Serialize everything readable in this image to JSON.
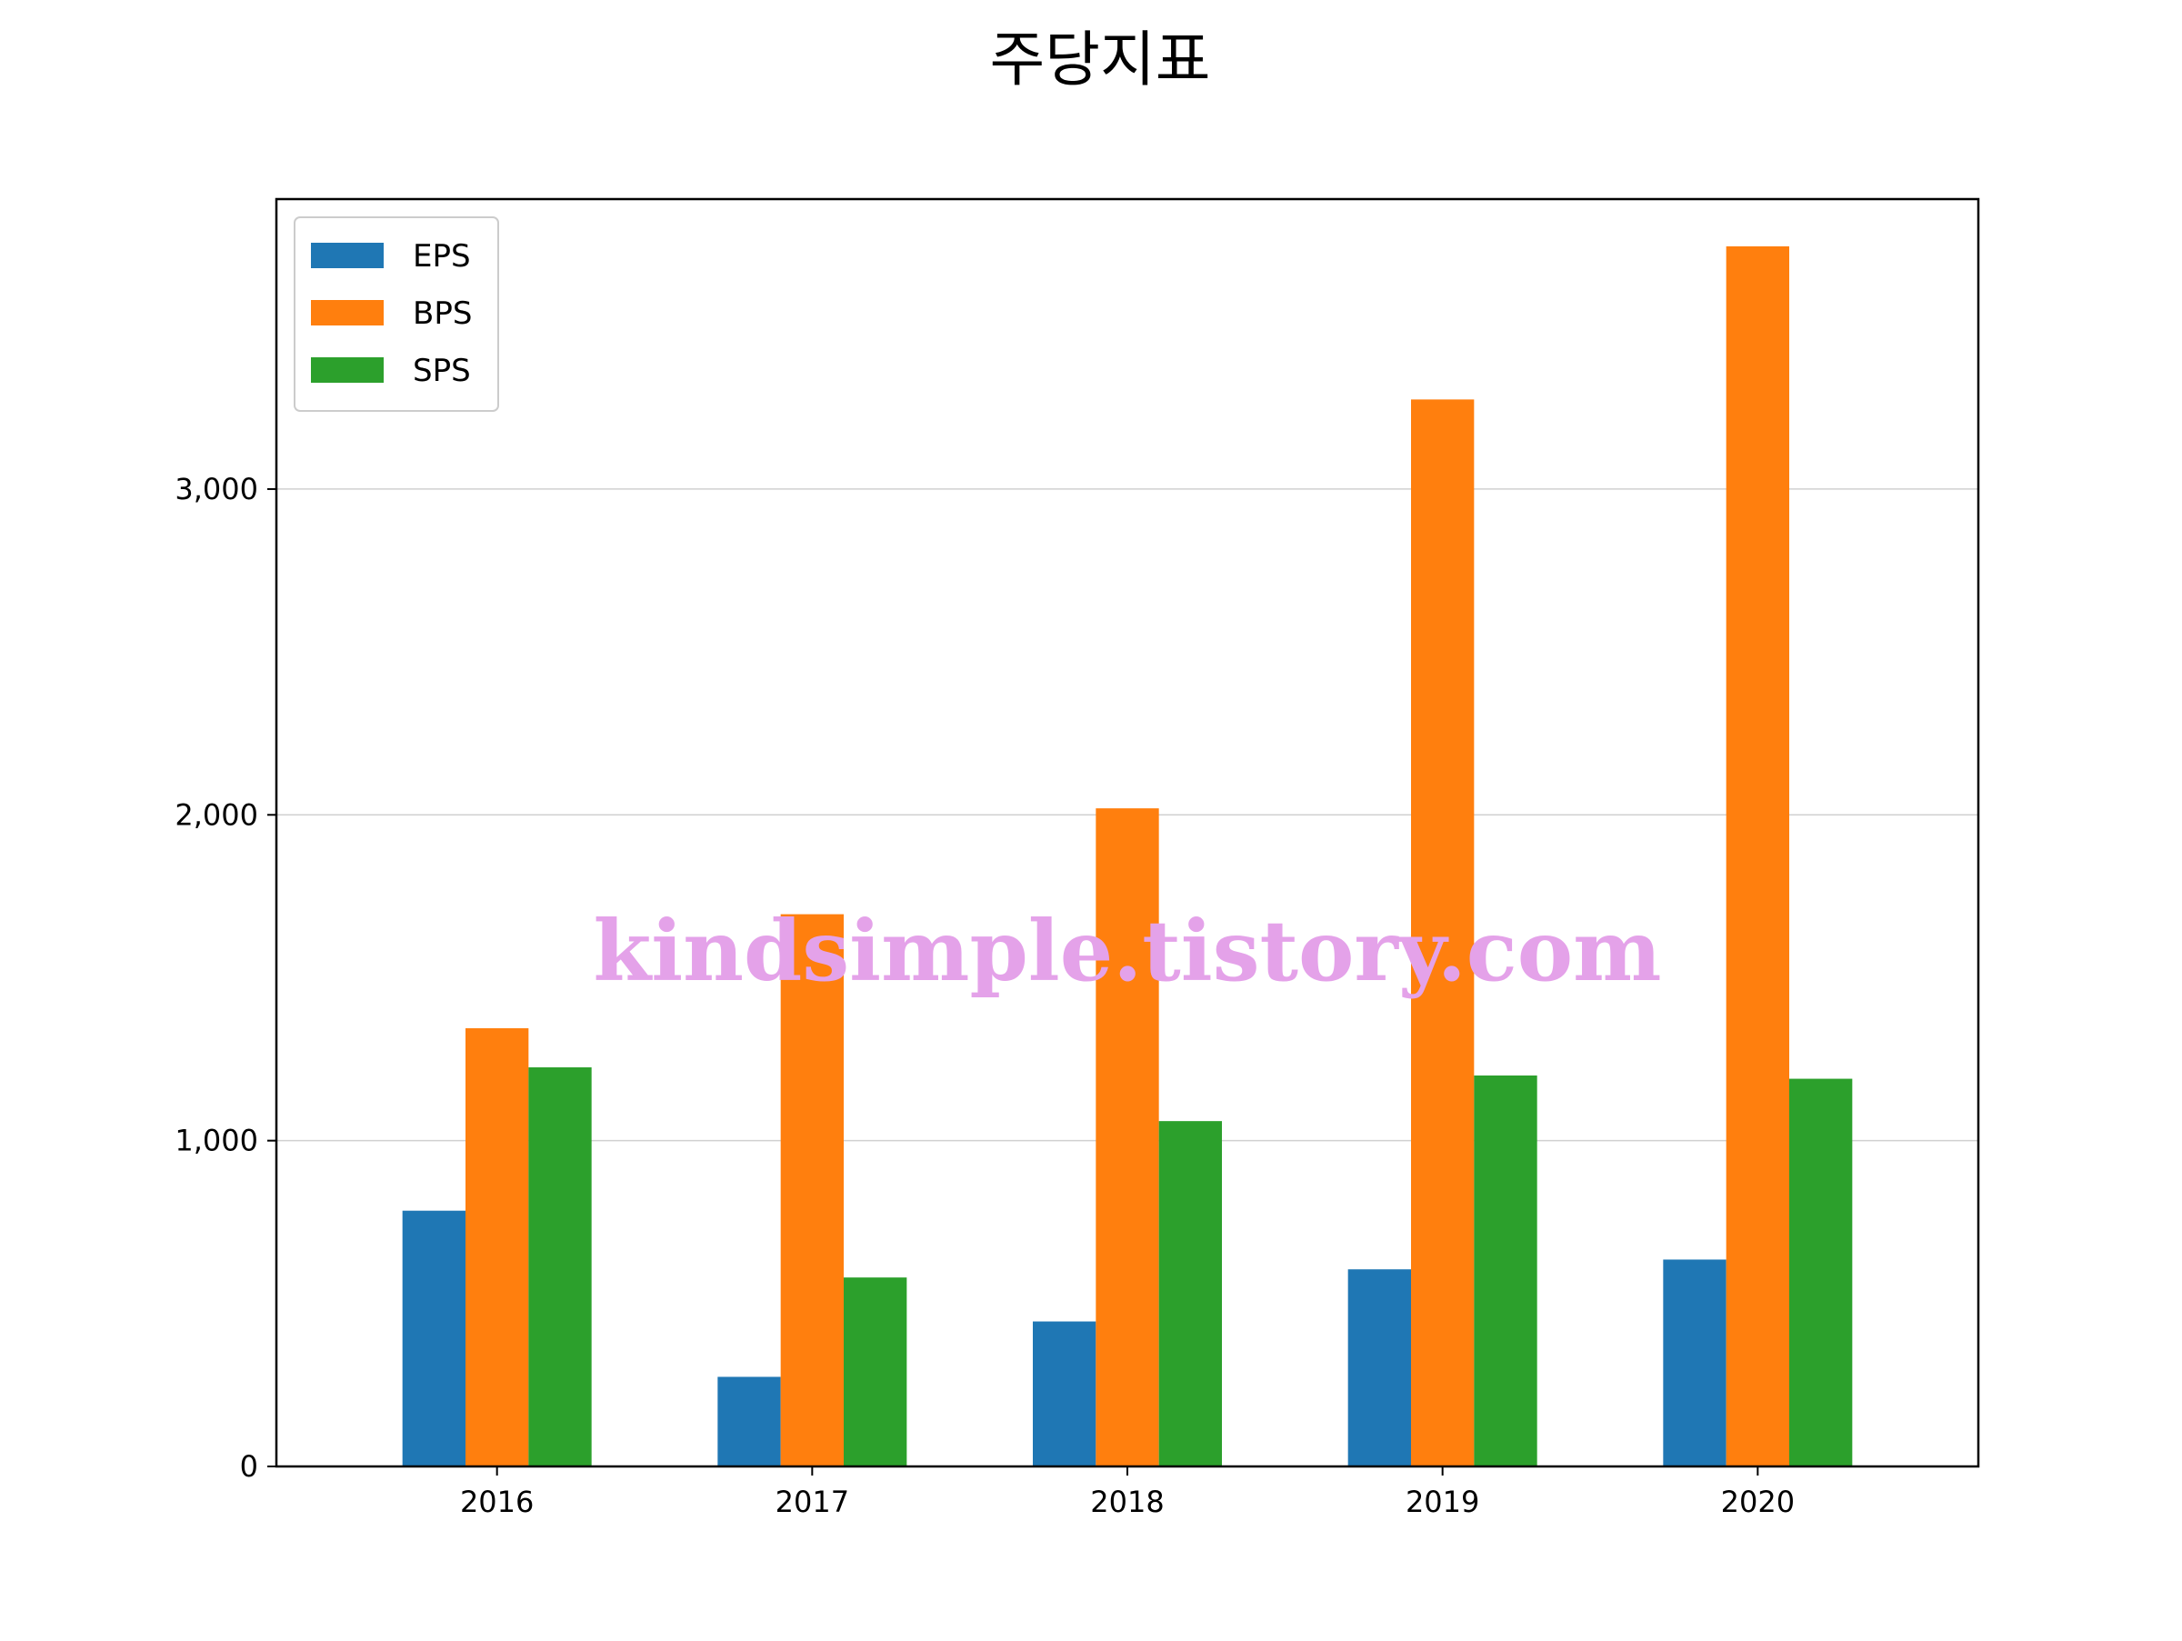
{
  "chart_data": {
    "type": "bar",
    "title": "주당지표",
    "categories": [
      "2016",
      "2017",
      "2018",
      "2019",
      "2020"
    ],
    "series": [
      {
        "name": "EPS",
        "color": "#1f77b4",
        "values": [
          785,
          275,
          445,
          605,
          635
        ]
      },
      {
        "name": "BPS",
        "color": "#ff7f0e",
        "values": [
          1345,
          1695,
          2020,
          3275,
          3745
        ]
      },
      {
        "name": "SPS",
        "color": "#2ca02c",
        "values": [
          1225,
          580,
          1060,
          1200,
          1190
        ]
      }
    ],
    "ylim": [
      0,
      3890
    ],
    "yticks": [
      0,
      1000,
      2000,
      3000
    ],
    "ytick_labels": [
      "0",
      "1,000",
      "2,000",
      "3,000"
    ],
    "grid": "horizontal",
    "legend_position": "top-left",
    "xlabel": "",
    "ylabel": ""
  },
  "watermark": "kindsimple.tistory.com"
}
